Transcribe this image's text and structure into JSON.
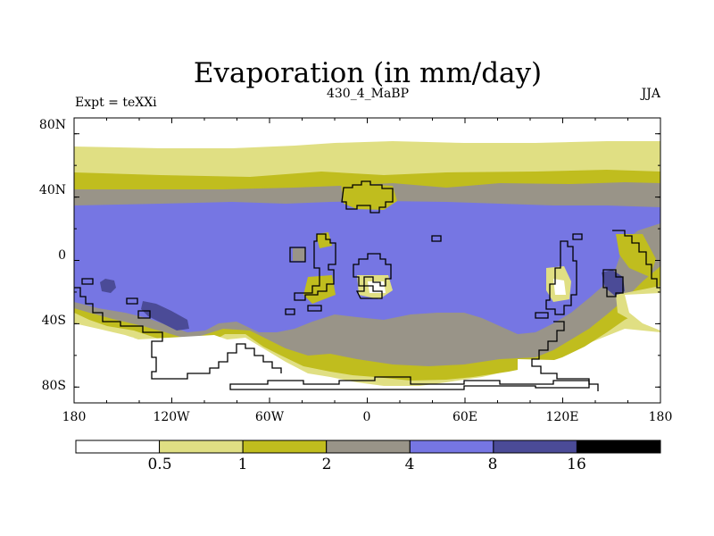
{
  "title": "Evaporation (in mm/day)",
  "subtitle_left": "Expt = teXXi",
  "subtitle_center": "430_4_MaBP",
  "subtitle_right": "JJA",
  "axes": {
    "y_ticks": [
      "80N",
      "40N",
      "0",
      "40S",
      "80S"
    ],
    "x_ticks": [
      "180",
      "120W",
      "60W",
      "0",
      "60E",
      "120E",
      "180"
    ]
  },
  "colorbar": {
    "levels": [
      "0.5",
      "1",
      "2",
      "4",
      "8",
      "16"
    ],
    "colors": [
      "#ffffff",
      "#e0df83",
      "#c0bd1e",
      "#999488",
      "#7676e3",
      "#4b4b97",
      "#000000"
    ],
    "land_outline_color": "#000000"
  }
}
